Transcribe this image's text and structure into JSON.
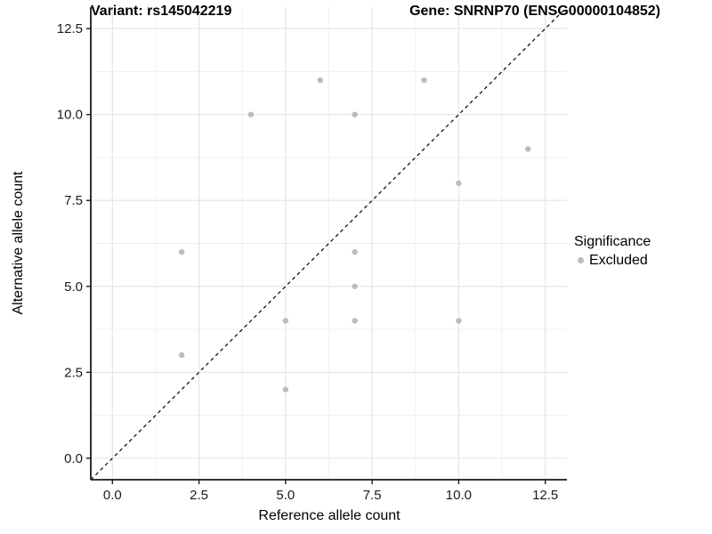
{
  "titles": {
    "variant": "Variant: rs145042219",
    "gene": "Gene: SNRNP70 (ENSG00000104852)"
  },
  "legend": {
    "title": "Significance",
    "items": [
      {
        "label": "Excluded",
        "color": "#bcbcbc"
      }
    ]
  },
  "colors": {
    "point": "#bcbcbc",
    "grid_major": "#e3e3e3",
    "grid_minor": "#efefef",
    "axis_line": "#1a1a1a",
    "tick_text": "#1a1a1a",
    "identity_line": "#000000"
  },
  "chart_data": {
    "type": "scatter",
    "title_left": "Variant: rs145042219",
    "title_right": "Gene: SNRNP70 (ENSG00000104852)",
    "xlabel": "Reference allele count",
    "ylabel": "Alternative allele count",
    "xlim": [
      -0.625,
      13.125
    ],
    "ylim": [
      -0.625,
      13.125
    ],
    "x_ticks": [
      0,
      2.5,
      5,
      7.5,
      10,
      12.5
    ],
    "y_ticks": [
      0,
      2.5,
      5,
      7.5,
      10,
      12.5
    ],
    "x_tick_labels": [
      "0.0",
      "2.5",
      "5.0",
      "7.5",
      "10.0",
      "12.5"
    ],
    "y_tick_labels": [
      "0.0",
      "2.5",
      "5.0",
      "7.5",
      "10.0",
      "12.5"
    ],
    "grid": "major+minor",
    "legend_position": "right",
    "reference_line": {
      "kind": "identity y=x",
      "style": "dashed",
      "color": "#000000"
    },
    "series": [
      {
        "name": "Excluded",
        "color": "#bcbcbc",
        "points": [
          [
            2,
            3
          ],
          [
            2,
            6
          ],
          [
            4,
            10
          ],
          [
            5,
            2
          ],
          [
            5,
            4
          ],
          [
            6,
            11
          ],
          [
            7,
            4
          ],
          [
            7,
            5
          ],
          [
            7,
            6
          ],
          [
            7,
            10
          ],
          [
            9,
            11
          ],
          [
            10,
            4
          ],
          [
            10,
            8
          ],
          [
            12,
            9
          ]
        ]
      }
    ]
  }
}
